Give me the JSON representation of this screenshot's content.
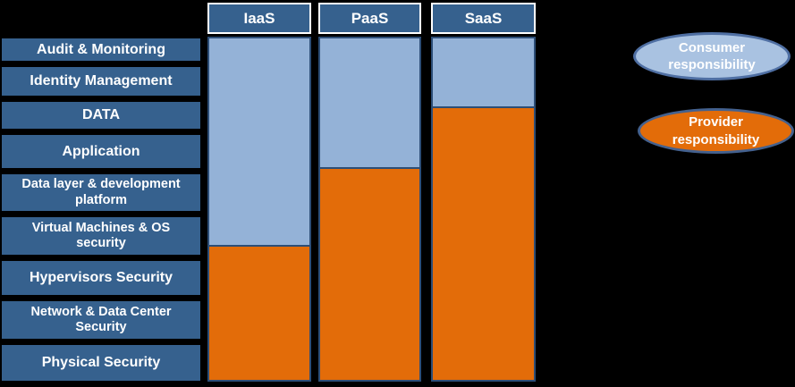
{
  "colors": {
    "background": "#000000",
    "label_box": "#36618E",
    "label_text": "#FFFFFF",
    "header_box": "#36618E",
    "header_border": "#FFFFFF",
    "bar_border": "#2D4E77",
    "consumer": "#94B2D7",
    "provider": "#E36C09",
    "consumer_ellipse_fill": "#A9C2E1",
    "consumer_ellipse_border": "#4F6FA3",
    "provider_ellipse_fill": "#E36C09",
    "provider_ellipse_border": "#44618E"
  },
  "layers": [
    {
      "label": "Audit & Monitoring"
    },
    {
      "label": "Identity Management"
    },
    {
      "label": "DATA"
    },
    {
      "label": "Application"
    },
    {
      "label": "Data layer & development platform"
    },
    {
      "label": "Virtual Machines & OS security"
    },
    {
      "label": "Hypervisors Security"
    },
    {
      "label": "Network & Data Center Security"
    },
    {
      "label": "Physical Security"
    }
  ],
  "columns": [
    {
      "label": "IaaS",
      "consumer_pct": 60.6,
      "provider_pct": 39.4
    },
    {
      "label": "PaaS",
      "consumer_pct": 37.8,
      "provider_pct": 62.2
    },
    {
      "label": "SaaS",
      "consumer_pct": 19.9,
      "provider_pct": 80.1
    }
  ],
  "legend": {
    "consumer_label": "Consumer responsibility",
    "provider_label": "Provider responsibility"
  }
}
